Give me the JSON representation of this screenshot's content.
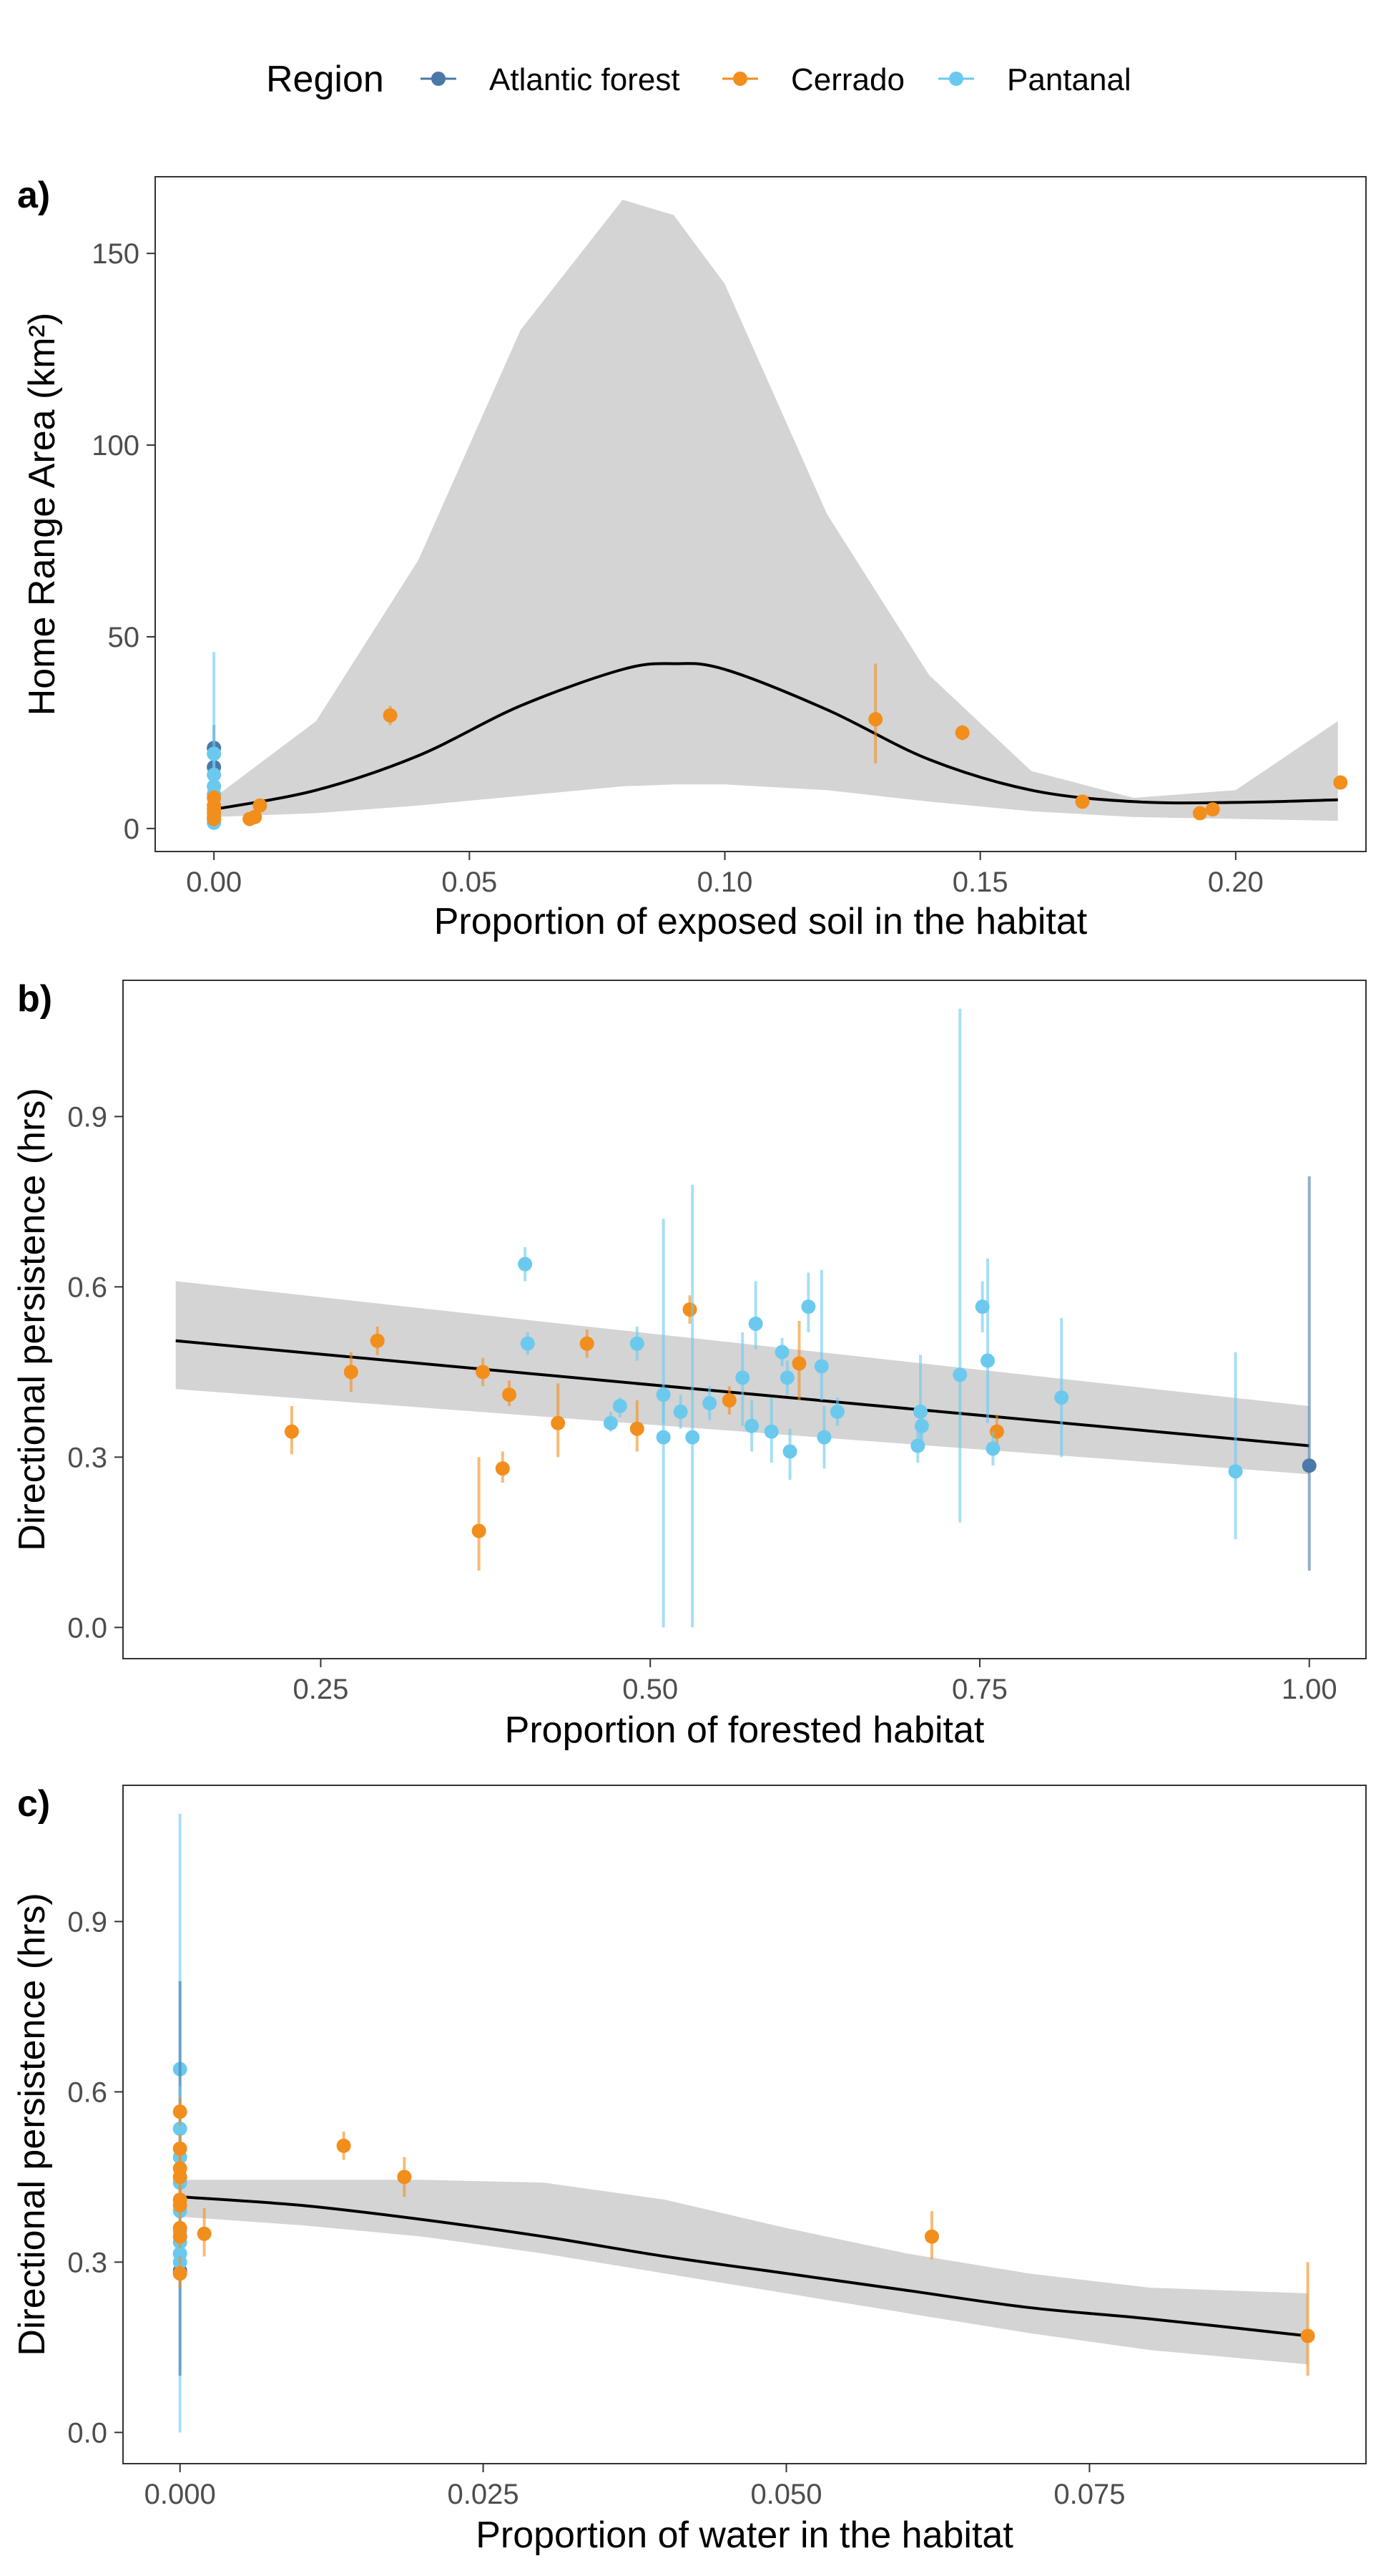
{
  "legend": {
    "title": "Region",
    "entries": [
      {
        "name": "Atlantic forest",
        "color": "#4a78a8"
      },
      {
        "name": "Cerrado",
        "color": "#f28e1c"
      },
      {
        "name": "Pantanal",
        "color": "#6bc9ee"
      }
    ]
  },
  "chart_data": [
    {
      "panel_label": "a)",
      "type": "scatter",
      "xlabel": "Proportion of exposed soil in the habitat",
      "ylabel": "Home Range Area (km²)",
      "xlim": [
        -0.0115,
        0.2255
      ],
      "ylim": [
        -6,
        170
      ],
      "xticks": [
        0,
        0.05,
        0.1,
        0.15,
        0.2
      ],
      "xtick_labels": [
        "0.00",
        "0.05",
        "0.10",
        "0.15",
        "0.20"
      ],
      "yticks": [
        0,
        50,
        100,
        150
      ],
      "ytick_labels": [
        "0",
        "50",
        "100",
        "150"
      ],
      "grid": false,
      "points": [
        {
          "region": "Atlantic forest",
          "x": 0,
          "y": 21,
          "ymin": 17,
          "ymax": 27
        },
        {
          "region": "Atlantic forest",
          "x": 0,
          "y": 16,
          "ymin": 13,
          "ymax": 20
        },
        {
          "region": "Pantanal",
          "x": 0,
          "y": 19.5,
          "ymin": 5,
          "ymax": 46
        },
        {
          "region": "Pantanal",
          "x": 0,
          "y": 14,
          "ymin": 10,
          "ymax": 20
        },
        {
          "region": "Pantanal",
          "x": 0,
          "y": 11,
          "ymin": 8,
          "ymax": 15
        },
        {
          "region": "Pantanal",
          "x": 0,
          "y": 9,
          "ymin": 7,
          "ymax": 12
        },
        {
          "region": "Pantanal",
          "x": 0,
          "y": 3,
          "ymin": 1,
          "ymax": 6
        },
        {
          "region": "Pantanal",
          "x": 0,
          "y": 1.5,
          "ymin": 0.5,
          "ymax": 3
        },
        {
          "region": "Cerrado",
          "x": 0,
          "y": 8,
          "ymin": 6,
          "ymax": 10
        },
        {
          "region": "Cerrado",
          "x": 0,
          "y": 6,
          "ymin": 4,
          "ymax": 8
        },
        {
          "region": "Cerrado",
          "x": 0,
          "y": 5,
          "ymin": 4,
          "ymax": 7
        },
        {
          "region": "Cerrado",
          "x": 0,
          "y": 4,
          "ymin": 3,
          "ymax": 5
        },
        {
          "region": "Cerrado",
          "x": 0,
          "y": 2.5,
          "ymin": 1.5,
          "ymax": 3.5
        },
        {
          "region": "Cerrado",
          "x": 0.007,
          "y": 2.5,
          "ymin": 2,
          "ymax": 3
        },
        {
          "region": "Cerrado",
          "x": 0.008,
          "y": 3,
          "ymin": 2.5,
          "ymax": 3.5
        },
        {
          "region": "Cerrado",
          "x": 0.009,
          "y": 6,
          "ymin": 5,
          "ymax": 7
        },
        {
          "region": "Cerrado",
          "x": 0.0345,
          "y": 29.5,
          "ymin": 27,
          "ymax": 32
        },
        {
          "region": "Cerrado",
          "x": 0.1295,
          "y": 28.5,
          "ymin": 17,
          "ymax": 43
        },
        {
          "region": "Cerrado",
          "x": 0.1465,
          "y": 25,
          "ymin": 23,
          "ymax": 27
        },
        {
          "region": "Cerrado",
          "x": 0.17,
          "y": 7,
          "ymin": 6,
          "ymax": 8
        },
        {
          "region": "Cerrado",
          "x": 0.193,
          "y": 4,
          "ymin": 3,
          "ymax": 5
        },
        {
          "region": "Cerrado",
          "x": 0.1955,
          "y": 5,
          "ymin": 4,
          "ymax": 6
        },
        {
          "region": "Cerrado",
          "x": 0.2205,
          "y": 12,
          "ymin": 10.5,
          "ymax": 13.5
        }
      ],
      "fit": {
        "x": [
          0,
          0.02,
          0.04,
          0.06,
          0.08,
          0.09,
          0.1,
          0.12,
          0.14,
          0.16,
          0.18,
          0.2,
          0.22
        ],
        "y": [
          5,
          10,
          19,
          32,
          41.5,
          43,
          41.5,
          31,
          18,
          10,
          7,
          6.8,
          7.5
        ],
        "lower": [
          3,
          4,
          6,
          8.5,
          11,
          11.5,
          11.5,
          10,
          7,
          4.5,
          3,
          2.5,
          2
        ],
        "upper": [
          8,
          28,
          70,
          130,
          164,
          160,
          142,
          82,
          40,
          15,
          8,
          10,
          28
        ]
      }
    },
    {
      "panel_label": "b)",
      "type": "scatter",
      "xlabel": "Proportion of forested habitat",
      "ylabel": "Directional persistence (hrs)",
      "xlim": [
        0.1,
        1.043
      ],
      "ylim": [
        -0.055,
        1.14
      ],
      "xticks": [
        0.25,
        0.5,
        0.75,
        1.0
      ],
      "xtick_labels": [
        "0.25",
        "0.50",
        "0.75",
        "1.00"
      ],
      "yticks": [
        0,
        0.3,
        0.6,
        0.9
      ],
      "ytick_labels": [
        "0.0",
        "0.3",
        "0.6",
        "0.9"
      ],
      "grid": false,
      "points": [
        {
          "region": "Cerrado",
          "x": 0.228,
          "y": 0.345,
          "ymin": 0.305,
          "ymax": 0.39
        },
        {
          "region": "Cerrado",
          "x": 0.273,
          "y": 0.45,
          "ymin": 0.415,
          "ymax": 0.485
        },
        {
          "region": "Cerrado",
          "x": 0.293,
          "y": 0.505,
          "ymin": 0.48,
          "ymax": 0.53
        },
        {
          "region": "Cerrado",
          "x": 0.37,
          "y": 0.17,
          "ymin": 0.1,
          "ymax": 0.3
        },
        {
          "region": "Cerrado",
          "x": 0.373,
          "y": 0.45,
          "ymin": 0.425,
          "ymax": 0.475
        },
        {
          "region": "Cerrado",
          "x": 0.388,
          "y": 0.28,
          "ymin": 0.255,
          "ymax": 0.31
        },
        {
          "region": "Cerrado",
          "x": 0.393,
          "y": 0.41,
          "ymin": 0.39,
          "ymax": 0.435
        },
        {
          "region": "Cerrado",
          "x": 0.43,
          "y": 0.36,
          "ymin": 0.3,
          "ymax": 0.43
        },
        {
          "region": "Cerrado",
          "x": 0.452,
          "y": 0.5,
          "ymin": 0.475,
          "ymax": 0.525
        },
        {
          "region": "Cerrado",
          "x": 0.49,
          "y": 0.35,
          "ymin": 0.31,
          "ymax": 0.4
        },
        {
          "region": "Cerrado",
          "x": 0.53,
          "y": 0.56,
          "ymin": 0.535,
          "ymax": 0.585
        },
        {
          "region": "Cerrado",
          "x": 0.56,
          "y": 0.4,
          "ymin": 0.375,
          "ymax": 0.425
        },
        {
          "region": "Cerrado",
          "x": 0.613,
          "y": 0.465,
          "ymin": 0.4,
          "ymax": 0.54
        },
        {
          "region": "Cerrado",
          "x": 0.763,
          "y": 0.345,
          "ymin": 0.32,
          "ymax": 0.375
        },
        {
          "region": "Pantanal",
          "x": 0.405,
          "y": 0.64,
          "ymin": 0.61,
          "ymax": 0.67
        },
        {
          "region": "Pantanal",
          "x": 0.407,
          "y": 0.5,
          "ymin": 0.48,
          "ymax": 0.52
        },
        {
          "region": "Pantanal",
          "x": 0.47,
          "y": 0.36,
          "ymin": 0.345,
          "ymax": 0.38
        },
        {
          "region": "Pantanal",
          "x": 0.477,
          "y": 0.39,
          "ymin": 0.37,
          "ymax": 0.405
        },
        {
          "region": "Pantanal",
          "x": 0.49,
          "y": 0.5,
          "ymin": 0.47,
          "ymax": 0.53
        },
        {
          "region": "Pantanal",
          "x": 0.51,
          "y": 0.41,
          "ymin": 0.36,
          "ymax": 0.72
        },
        {
          "region": "Pantanal",
          "x": 0.51,
          "y": 0.335,
          "ymin": 0.0,
          "ymax": 0.41
        },
        {
          "region": "Pantanal",
          "x": 0.523,
          "y": 0.38,
          "ymin": 0.35,
          "ymax": 0.41
        },
        {
          "region": "Pantanal",
          "x": 0.532,
          "y": 0.335,
          "ymin": 0.0,
          "ymax": 0.78
        },
        {
          "region": "Pantanal",
          "x": 0.545,
          "y": 0.395,
          "ymin": 0.365,
          "ymax": 0.425
        },
        {
          "region": "Pantanal",
          "x": 0.57,
          "y": 0.44,
          "ymin": 0.355,
          "ymax": 0.52
        },
        {
          "region": "Pantanal",
          "x": 0.577,
          "y": 0.355,
          "ymin": 0.31,
          "ymax": 0.4
        },
        {
          "region": "Pantanal",
          "x": 0.58,
          "y": 0.535,
          "ymin": 0.49,
          "ymax": 0.61
        },
        {
          "region": "Pantanal",
          "x": 0.592,
          "y": 0.345,
          "ymin": 0.29,
          "ymax": 0.405
        },
        {
          "region": "Pantanal",
          "x": 0.6,
          "y": 0.485,
          "ymin": 0.46,
          "ymax": 0.51
        },
        {
          "region": "Pantanal",
          "x": 0.604,
          "y": 0.44,
          "ymin": 0.41,
          "ymax": 0.47
        },
        {
          "region": "Pantanal",
          "x": 0.606,
          "y": 0.31,
          "ymin": 0.26,
          "ymax": 0.35
        },
        {
          "region": "Pantanal",
          "x": 0.62,
          "y": 0.565,
          "ymin": 0.52,
          "ymax": 0.625
        },
        {
          "region": "Pantanal",
          "x": 0.63,
          "y": 0.46,
          "ymin": 0.4,
          "ymax": 0.63
        },
        {
          "region": "Pantanal",
          "x": 0.632,
          "y": 0.335,
          "ymin": 0.28,
          "ymax": 0.39
        },
        {
          "region": "Pantanal",
          "x": 0.642,
          "y": 0.38,
          "ymin": 0.355,
          "ymax": 0.405
        },
        {
          "region": "Pantanal",
          "x": 0.703,
          "y": 0.32,
          "ymin": 0.29,
          "ymax": 0.35
        },
        {
          "region": "Pantanal",
          "x": 0.705,
          "y": 0.38,
          "ymin": 0.31,
          "ymax": 0.48
        },
        {
          "region": "Pantanal",
          "x": 0.706,
          "y": 0.355,
          "ymin": 0.32,
          "ymax": 0.39
        },
        {
          "region": "Pantanal",
          "x": 0.735,
          "y": 0.445,
          "ymin": 0.185,
          "ymax": 1.09
        },
        {
          "region": "Pantanal",
          "x": 0.752,
          "y": 0.565,
          "ymin": 0.52,
          "ymax": 0.61
        },
        {
          "region": "Pantanal",
          "x": 0.756,
          "y": 0.47,
          "ymin": 0.36,
          "ymax": 0.65
        },
        {
          "region": "Pantanal",
          "x": 0.76,
          "y": 0.315,
          "ymin": 0.285,
          "ymax": 0.345
        },
        {
          "region": "Pantanal",
          "x": 0.812,
          "y": 0.405,
          "ymin": 0.3,
          "ymax": 0.545
        },
        {
          "region": "Pantanal",
          "x": 0.944,
          "y": 0.275,
          "ymin": 0.155,
          "ymax": 0.485
        },
        {
          "region": "Atlantic forest",
          "x": 1.0,
          "y": 0.285,
          "ymin": 0.1,
          "ymax": 0.795
        }
      ],
      "fit": {
        "x": [
          0.14,
          1.0
        ],
        "y": [
          0.505,
          0.32
        ],
        "lower": [
          0.42,
          0.27
        ],
        "upper": [
          0.61,
          0.39
        ]
      }
    },
    {
      "panel_label": "c)",
      "type": "scatter",
      "xlabel": "Proportion of water in the habitat",
      "ylabel": "Directional persistence (hrs)",
      "xlim": [
        -0.0047,
        0.0978
      ],
      "ylim": [
        -0.055,
        1.14
      ],
      "xticks": [
        0,
        0.025,
        0.05,
        0.075
      ],
      "xtick_labels": [
        "0.000",
        "0.025",
        "0.050",
        "0.075"
      ],
      "yticks": [
        0,
        0.3,
        0.6,
        0.9
      ],
      "ytick_labels": [
        "0.0",
        "0.3",
        "0.6",
        "0.9"
      ],
      "grid": false,
      "points": [
        {
          "region": "Pantanal",
          "x": 0,
          "y": 0.64,
          "ymin": 0.0,
          "ymax": 1.09
        },
        {
          "region": "Atlantic forest",
          "x": 0,
          "y": 0.285,
          "ymin": 0.1,
          "ymax": 0.795
        },
        {
          "region": "Pantanal",
          "x": 0,
          "y": 0.535,
          "ymin": 0.49,
          "ymax": 0.61
        },
        {
          "region": "Pantanal",
          "x": 0,
          "y": 0.485,
          "ymin": 0.46,
          "ymax": 0.51
        },
        {
          "region": "Pantanal",
          "x": 0,
          "y": 0.44,
          "ymin": 0.41,
          "ymax": 0.47
        },
        {
          "region": "Pantanal",
          "x": 0,
          "y": 0.39,
          "ymin": 0.37,
          "ymax": 0.41
        },
        {
          "region": "Pantanal",
          "x": 0,
          "y": 0.355,
          "ymin": 0.32,
          "ymax": 0.39
        },
        {
          "region": "Pantanal",
          "x": 0,
          "y": 0.335,
          "ymin": 0.3,
          "ymax": 0.37
        },
        {
          "region": "Pantanal",
          "x": 0,
          "y": 0.315,
          "ymin": 0.285,
          "ymax": 0.345
        },
        {
          "region": "Pantanal",
          "x": 0,
          "y": 0.3,
          "ymin": 0.27,
          "ymax": 0.33
        },
        {
          "region": "Cerrado",
          "x": 0,
          "y": 0.565,
          "ymin": 0.54,
          "ymax": 0.59
        },
        {
          "region": "Cerrado",
          "x": 0,
          "y": 0.5,
          "ymin": 0.475,
          "ymax": 0.525
        },
        {
          "region": "Cerrado",
          "x": 0,
          "y": 0.465,
          "ymin": 0.44,
          "ymax": 0.49
        },
        {
          "region": "Cerrado",
          "x": 0,
          "y": 0.45,
          "ymin": 0.425,
          "ymax": 0.475
        },
        {
          "region": "Cerrado",
          "x": 0,
          "y": 0.41,
          "ymin": 0.39,
          "ymax": 0.435
        },
        {
          "region": "Cerrado",
          "x": 0,
          "y": 0.4,
          "ymin": 0.38,
          "ymax": 0.42
        },
        {
          "region": "Cerrado",
          "x": 0,
          "y": 0.36,
          "ymin": 0.34,
          "ymax": 0.38
        },
        {
          "region": "Cerrado",
          "x": 0,
          "y": 0.345,
          "ymin": 0.325,
          "ymax": 0.365
        },
        {
          "region": "Cerrado",
          "x": 0,
          "y": 0.28,
          "ymin": 0.255,
          "ymax": 0.31
        },
        {
          "region": "Cerrado",
          "x": 0.002,
          "y": 0.35,
          "ymin": 0.31,
          "ymax": 0.395
        },
        {
          "region": "Cerrado",
          "x": 0.0135,
          "y": 0.505,
          "ymin": 0.48,
          "ymax": 0.53
        },
        {
          "region": "Cerrado",
          "x": 0.0185,
          "y": 0.45,
          "ymin": 0.415,
          "ymax": 0.485
        },
        {
          "region": "Cerrado",
          "x": 0.062,
          "y": 0.345,
          "ymin": 0.305,
          "ymax": 0.39
        },
        {
          "region": "Cerrado",
          "x": 0.093,
          "y": 0.17,
          "ymin": 0.1,
          "ymax": 0.3
        }
      ],
      "fit": {
        "x": [
          0,
          0.01,
          0.02,
          0.03,
          0.04,
          0.05,
          0.06,
          0.07,
          0.08,
          0.093
        ],
        "y": [
          0.415,
          0.4,
          0.375,
          0.345,
          0.31,
          0.28,
          0.25,
          0.22,
          0.2,
          0.17
        ],
        "lower": [
          0.38,
          0.365,
          0.345,
          0.315,
          0.28,
          0.245,
          0.21,
          0.175,
          0.145,
          0.12
        ],
        "upper": [
          0.445,
          0.445,
          0.445,
          0.44,
          0.41,
          0.36,
          0.315,
          0.28,
          0.255,
          0.245
        ]
      }
    }
  ]
}
